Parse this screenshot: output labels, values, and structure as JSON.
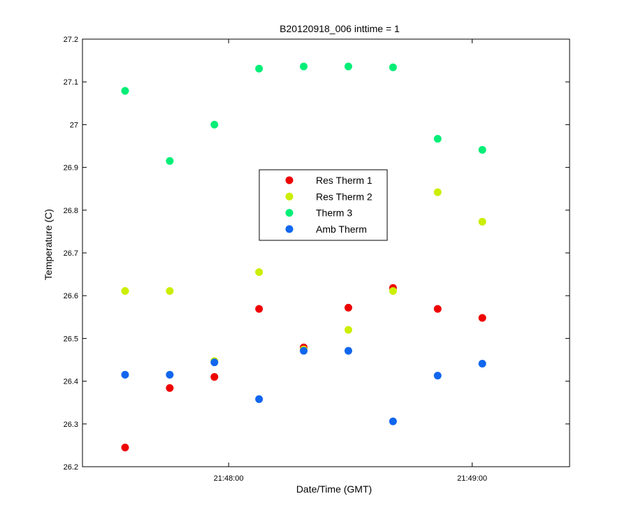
{
  "chart_data": {
    "type": "scatter",
    "title": "B20120918_006 inttime = 1",
    "xlabel": "Date/Time (GMT)",
    "ylabel": "Temperature (C)",
    "xlim": [
      "21:47:24",
      "21:49:24"
    ],
    "ylim": [
      26.2,
      27.2
    ],
    "x_ticks": [
      "21:48:00",
      "21:49:00"
    ],
    "y_ticks": [
      "26.2",
      "26.3",
      "26.4",
      "26.5",
      "26.6",
      "26.7",
      "26.8",
      "26.9",
      "27",
      "27.1",
      "27.2"
    ],
    "x": [
      "21:47:34.5",
      "21:47:45.5",
      "21:47:56.5",
      "21:48:07.5",
      "21:48:18.5",
      "21:48:29.5",
      "21:48:40.5",
      "21:48:51.5",
      "21:49:02.5"
    ],
    "legend_position": "center",
    "grid": false,
    "series": [
      {
        "name": "Res Therm 1",
        "color": "#ee0000",
        "values": [
          26.245,
          26.384,
          26.41,
          26.569,
          26.479,
          26.572,
          26.618,
          26.569,
          26.548
        ]
      },
      {
        "name": "Res Therm 2",
        "color": "#ccee00",
        "values": [
          26.611,
          26.611,
          26.447,
          26.655,
          26.474,
          26.52,
          26.611,
          26.842,
          26.773
        ]
      },
      {
        "name": "Therm 3",
        "color": "#00ee77",
        "values": [
          27.079,
          26.915,
          27.0,
          27.131,
          27.136,
          27.136,
          27.134,
          26.967,
          26.941
        ]
      },
      {
        "name": "Amb Therm",
        "color": "#1166ee",
        "values": [
          26.415,
          26.415,
          26.444,
          26.358,
          26.471,
          26.471,
          26.306,
          26.413,
          26.441
        ]
      }
    ]
  }
}
